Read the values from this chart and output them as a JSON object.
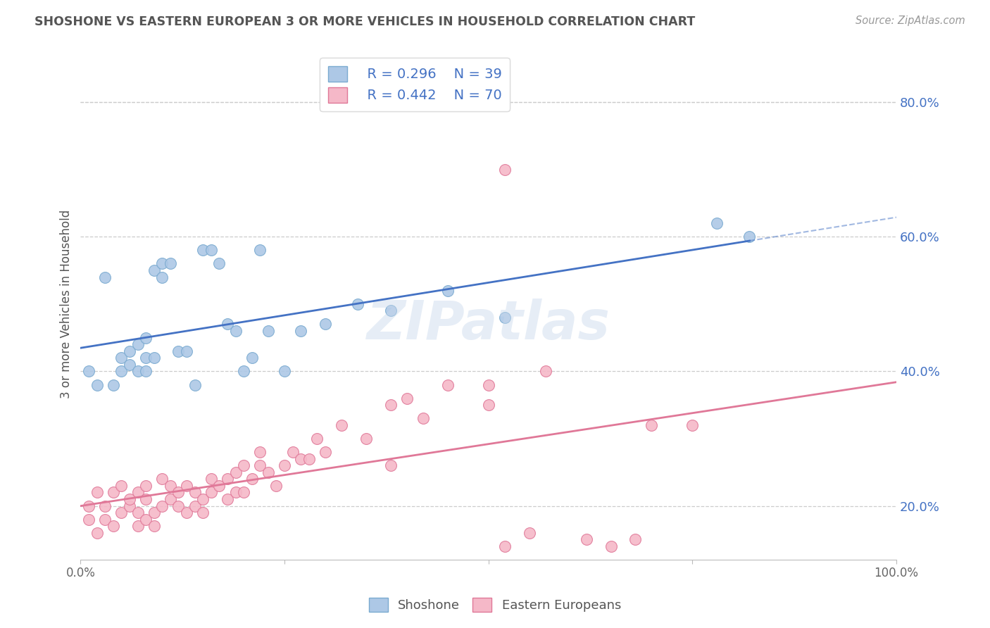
{
  "title": "SHOSHONE VS EASTERN EUROPEAN 3 OR MORE VEHICLES IN HOUSEHOLD CORRELATION CHART",
  "source": "Source: ZipAtlas.com",
  "ylabel": "3 or more Vehicles in Household",
  "xlim": [
    0.0,
    1.0
  ],
  "ylim": [
    0.12,
    0.88
  ],
  "legend_r_shoshone": "R = 0.296",
  "legend_n_shoshone": "N = 39",
  "legend_r_eastern": "R = 0.442",
  "legend_n_eastern": "N = 70",
  "shoshone_color": "#adc8e6",
  "shoshone_edge": "#7aaad0",
  "eastern_color": "#f5b8c8",
  "eastern_edge": "#e07898",
  "shoshone_line_color": "#4472c4",
  "eastern_line_color": "#e07898",
  "watermark": "ZIPatlas",
  "grid_color": "#cccccc",
  "shoshone_x": [
    0.01,
    0.02,
    0.03,
    0.04,
    0.05,
    0.05,
    0.06,
    0.06,
    0.07,
    0.07,
    0.08,
    0.08,
    0.08,
    0.09,
    0.09,
    0.1,
    0.1,
    0.11,
    0.12,
    0.13,
    0.14,
    0.15,
    0.16,
    0.17,
    0.18,
    0.19,
    0.2,
    0.21,
    0.22,
    0.23,
    0.25,
    0.27,
    0.3,
    0.34,
    0.38,
    0.45,
    0.52,
    0.78,
    0.82
  ],
  "shoshone_y": [
    0.4,
    0.38,
    0.54,
    0.38,
    0.4,
    0.42,
    0.41,
    0.43,
    0.4,
    0.44,
    0.4,
    0.42,
    0.45,
    0.42,
    0.55,
    0.56,
    0.54,
    0.56,
    0.43,
    0.43,
    0.38,
    0.58,
    0.58,
    0.56,
    0.47,
    0.46,
    0.4,
    0.42,
    0.58,
    0.46,
    0.4,
    0.46,
    0.47,
    0.5,
    0.49,
    0.52,
    0.48,
    0.62,
    0.6
  ],
  "eastern_x": [
    0.01,
    0.01,
    0.02,
    0.02,
    0.03,
    0.03,
    0.04,
    0.04,
    0.05,
    0.05,
    0.06,
    0.06,
    0.07,
    0.07,
    0.07,
    0.08,
    0.08,
    0.08,
    0.09,
    0.09,
    0.1,
    0.1,
    0.11,
    0.11,
    0.12,
    0.12,
    0.13,
    0.13,
    0.14,
    0.14,
    0.15,
    0.15,
    0.16,
    0.16,
    0.17,
    0.18,
    0.18,
    0.19,
    0.19,
    0.2,
    0.2,
    0.21,
    0.22,
    0.22,
    0.23,
    0.24,
    0.25,
    0.26,
    0.27,
    0.28,
    0.29,
    0.3,
    0.32,
    0.35,
    0.38,
    0.38,
    0.4,
    0.42,
    0.45,
    0.5,
    0.52,
    0.55,
    0.57,
    0.62,
    0.65,
    0.68,
    0.5,
    0.52,
    0.7,
    0.75
  ],
  "eastern_y": [
    0.2,
    0.18,
    0.22,
    0.16,
    0.2,
    0.18,
    0.17,
    0.22,
    0.19,
    0.23,
    0.2,
    0.21,
    0.22,
    0.19,
    0.17,
    0.21,
    0.18,
    0.23,
    0.17,
    0.19,
    0.2,
    0.24,
    0.21,
    0.23,
    0.2,
    0.22,
    0.19,
    0.23,
    0.2,
    0.22,
    0.21,
    0.19,
    0.24,
    0.22,
    0.23,
    0.21,
    0.24,
    0.22,
    0.25,
    0.22,
    0.26,
    0.24,
    0.28,
    0.26,
    0.25,
    0.23,
    0.26,
    0.28,
    0.27,
    0.27,
    0.3,
    0.28,
    0.32,
    0.3,
    0.35,
    0.26,
    0.36,
    0.33,
    0.38,
    0.35,
    0.14,
    0.16,
    0.4,
    0.15,
    0.14,
    0.15,
    0.38,
    0.7,
    0.32,
    0.32
  ],
  "ytick_vals": [
    0.2,
    0.4,
    0.6,
    0.8
  ],
  "ytick_labels": [
    "20.0%",
    "40.0%",
    "60.0%",
    "80.0%"
  ],
  "xtick_vals": [
    0.0,
    0.25,
    0.5,
    0.75,
    1.0
  ],
  "xtick_labels": [
    "0.0%",
    "",
    "",
    "",
    "100.0%"
  ]
}
